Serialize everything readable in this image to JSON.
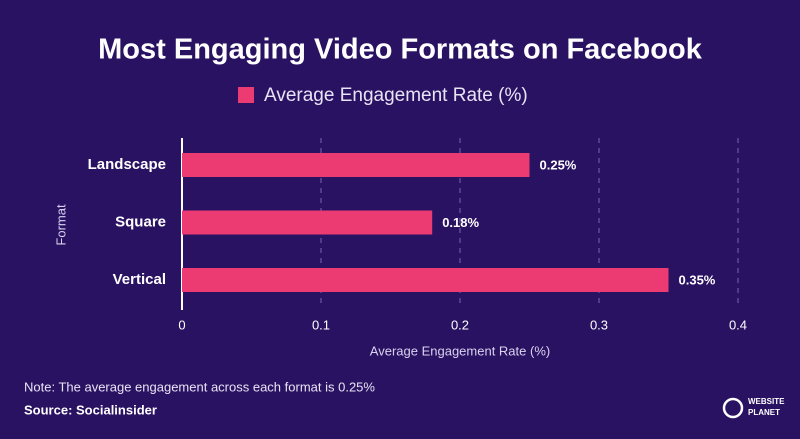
{
  "chart_data": {
    "type": "hbar",
    "title": "Most Engaging Video Formats on Facebook",
    "categories": [
      "Landscape",
      "Square",
      "Vertical"
    ],
    "series": [
      {
        "name": "Average Engagement Rate (%)",
        "color": "#ec3a73",
        "values": [
          0.25,
          0.18,
          0.35
        ],
        "value_labels": [
          "0.25%",
          "0.18%",
          "0.35%"
        ]
      }
    ],
    "xlim": [
      0,
      0.4
    ],
    "xticks": [
      0,
      0.1,
      0.2,
      0.3,
      0.4
    ],
    "grid": true,
    "legend": "top",
    "xlabel": "Average Engagement Rate (%)",
    "ylabel": "Format",
    "note": "Note: The average engagement across each format is 0.25%",
    "source": "Source: Socialinsider",
    "logo": [
      "WEBSITE",
      "PLANET"
    ]
  }
}
